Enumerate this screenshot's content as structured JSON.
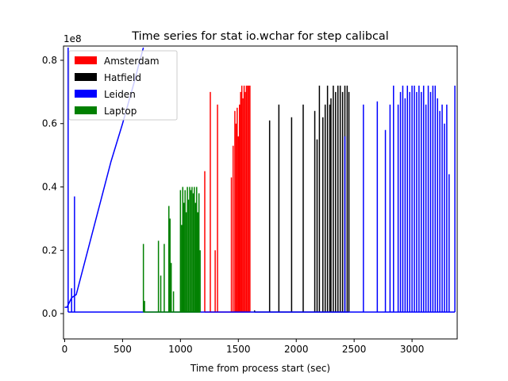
{
  "chart_data": {
    "type": "line",
    "title": "Time series for stat io.wchar for step calibcal",
    "xlabel": "Time from process start (sec)",
    "ylabel": "",
    "y_offset_text": "1e8",
    "xlim": [
      -10,
      3390
    ],
    "ylim": [
      -0.08,
      0.845
    ],
    "x_ticks": [
      0,
      500,
      1000,
      1500,
      2000,
      2500,
      3000
    ],
    "y_ticks": [
      0.0,
      0.2,
      0.4,
      0.6,
      0.8
    ],
    "y_tick_labels": [
      "0.0",
      "0.2",
      "0.4",
      "0.6",
      "0.8"
    ],
    "legend_position": "upper-left",
    "series": [
      {
        "name": "Amsterdam",
        "color": "#ff0000",
        "baseline": 0.005,
        "spikes": [
          [
            1210,
            0.45
          ],
          [
            1258,
            0.7
          ],
          [
            1300,
            0.2
          ],
          [
            1320,
            0.66
          ],
          [
            1440,
            0.43
          ],
          [
            1455,
            0.53
          ],
          [
            1470,
            0.64
          ],
          [
            1480,
            0.6
          ],
          [
            1490,
            0.65
          ],
          [
            1500,
            0.56
          ],
          [
            1510,
            0.66
          ],
          [
            1520,
            0.7
          ],
          [
            1530,
            0.72
          ],
          [
            1540,
            0.68
          ],
          [
            1550,
            0.72
          ],
          [
            1560,
            0.7
          ],
          [
            1570,
            0.72
          ],
          [
            1580,
            0.72
          ],
          [
            1590,
            0.72
          ],
          [
            1600,
            0.72
          ]
        ]
      },
      {
        "name": "Hatfield",
        "color": "#000000",
        "baseline": 0.005,
        "spikes": [
          [
            1640,
            0.01
          ],
          [
            1770,
            0.61
          ],
          [
            1850,
            0.66
          ],
          [
            1960,
            0.62
          ],
          [
            2060,
            0.66
          ],
          [
            2160,
            0.64
          ],
          [
            2180,
            0.55
          ],
          [
            2200,
            0.72
          ],
          [
            2230,
            0.62
          ],
          [
            2250,
            0.66
          ],
          [
            2270,
            0.72
          ],
          [
            2290,
            0.66
          ],
          [
            2300,
            0.68
          ],
          [
            2320,
            0.72
          ],
          [
            2340,
            0.7
          ],
          [
            2360,
            0.72
          ],
          [
            2380,
            0.72
          ],
          [
            2400,
            0.7
          ],
          [
            2420,
            0.72
          ],
          [
            2440,
            0.72
          ],
          [
            2455,
            0.7
          ]
        ]
      },
      {
        "name": "Leiden",
        "color": "#0000ff",
        "baseline": 0.005,
        "ramp": [
          [
            0,
            0.02
          ],
          [
            20,
            0.02
          ],
          [
            60,
            0.05
          ],
          [
            100,
            0.06
          ],
          [
            200,
            0.2
          ],
          [
            300,
            0.34
          ],
          [
            400,
            0.48
          ],
          [
            500,
            0.6
          ],
          [
            600,
            0.73
          ],
          [
            650,
            0.8
          ],
          [
            680,
            0.84
          ]
        ],
        "spikes": [
          [
            30,
            0.84
          ],
          [
            60,
            0.08
          ],
          [
            85,
            0.37
          ],
          [
            2420,
            0.56
          ],
          [
            2580,
            0.66
          ],
          [
            2700,
            0.67
          ],
          [
            2770,
            0.58
          ],
          [
            2810,
            0.66
          ],
          [
            2840,
            0.72
          ],
          [
            2880,
            0.66
          ],
          [
            2900,
            0.7
          ],
          [
            2920,
            0.72
          ],
          [
            2940,
            0.68
          ],
          [
            2960,
            0.72
          ],
          [
            2980,
            0.7
          ],
          [
            3000,
            0.72
          ],
          [
            3020,
            0.72
          ],
          [
            3040,
            0.7
          ],
          [
            3060,
            0.72
          ],
          [
            3080,
            0.7
          ],
          [
            3100,
            0.72
          ],
          [
            3120,
            0.66
          ],
          [
            3140,
            0.72
          ],
          [
            3160,
            0.7
          ],
          [
            3180,
            0.72
          ],
          [
            3200,
            0.72
          ],
          [
            3220,
            0.68
          ],
          [
            3240,
            0.64
          ],
          [
            3260,
            0.66
          ],
          [
            3280,
            0.6
          ],
          [
            3300,
            0.66
          ],
          [
            3320,
            0.44
          ],
          [
            3370,
            0.72
          ]
        ]
      },
      {
        "name": "Laptop",
        "color": "#008000",
        "baseline": 0.005,
        "spikes": [
          [
            680,
            0.22
          ],
          [
            690,
            0.04
          ],
          [
            810,
            0.23
          ],
          [
            830,
            0.12
          ],
          [
            860,
            0.22
          ],
          [
            900,
            0.34
          ],
          [
            910,
            0.3
          ],
          [
            920,
            0.16
          ],
          [
            940,
            0.07
          ],
          [
            1000,
            0.39
          ],
          [
            1010,
            0.28
          ],
          [
            1020,
            0.4
          ],
          [
            1030,
            0.35
          ],
          [
            1040,
            0.39
          ],
          [
            1050,
            0.32
          ],
          [
            1060,
            0.4
          ],
          [
            1070,
            0.36
          ],
          [
            1080,
            0.4
          ],
          [
            1090,
            0.39
          ],
          [
            1100,
            0.4
          ],
          [
            1110,
            0.38
          ],
          [
            1120,
            0.4
          ],
          [
            1130,
            0.35
          ],
          [
            1140,
            0.4
          ],
          [
            1150,
            0.32
          ],
          [
            1160,
            0.38
          ],
          [
            1170,
            0.2
          ]
        ]
      }
    ]
  }
}
